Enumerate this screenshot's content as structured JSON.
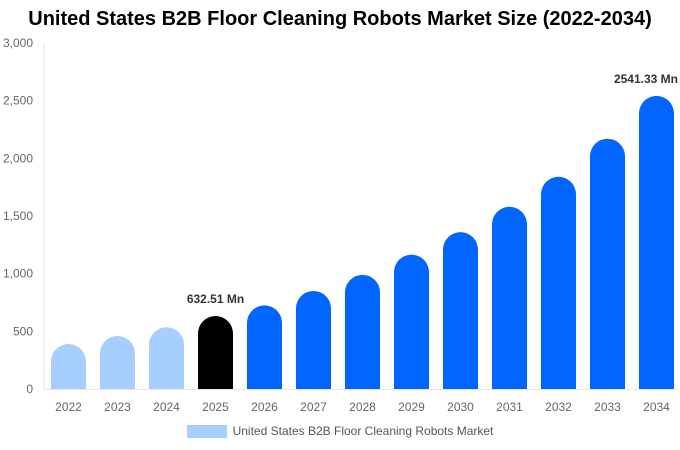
{
  "chart_data": {
    "type": "bar",
    "title": "United States B2B Floor Cleaning Robots Market Size (2022-2034)",
    "xlabel": "",
    "ylabel": "",
    "ylim": [
      0,
      3000
    ],
    "yticks": [
      0,
      500,
      1000,
      1500,
      2000,
      2500,
      3000
    ],
    "ytick_labels": [
      "0",
      "500",
      "1,000",
      "1,500",
      "2,000",
      "2,500",
      "3,000"
    ],
    "categories": [
      "2022",
      "2023",
      "2024",
      "2025",
      "2026",
      "2027",
      "2028",
      "2029",
      "2030",
      "2031",
      "2032",
      "2033",
      "2034"
    ],
    "series": [
      {
        "name": "United States B2B Floor Cleaning Robots Market",
        "values": [
          390,
          460,
          535,
          632.51,
          725,
          850,
          990,
          1165,
          1360,
          1580,
          1840,
          2170,
          2541.33
        ]
      }
    ],
    "bar_colors": [
      "#a6cfff",
      "#a6cfff",
      "#a6cfff",
      "#000000",
      "#0066ff",
      "#0066ff",
      "#0066ff",
      "#0066ff",
      "#0066ff",
      "#0066ff",
      "#0066ff",
      "#0066ff",
      "#0066ff"
    ],
    "legend_color": "#a6cfff",
    "data_labels": [
      {
        "category": "2025",
        "text": "632.51 Mn"
      },
      {
        "category": "2034",
        "text": "2541.33 Mn"
      }
    ],
    "grid": false,
    "legend_position": "bottom"
  }
}
